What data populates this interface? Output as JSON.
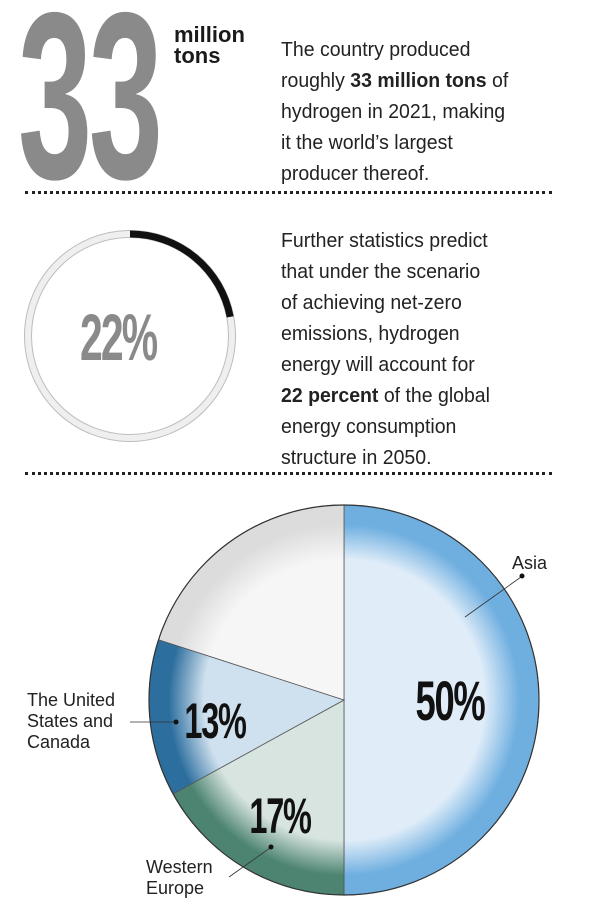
{
  "stat1": {
    "big_number": "33",
    "unit_line1": "million",
    "unit_line2": "tons",
    "lines": [
      [
        {
          "t": "The country produced"
        }
      ],
      [
        {
          "t": "roughly "
        },
        {
          "t": "33 million tons",
          "b": true
        },
        {
          "t": " of"
        }
      ],
      [
        {
          "t": "hydrogen in 2021, making"
        }
      ],
      [
        {
          "t": "it the world’s largest"
        }
      ],
      [
        {
          "t": "producer thereof."
        }
      ]
    ]
  },
  "stat2": {
    "value_label": "22%",
    "fraction": 0.22,
    "lines": [
      [
        {
          "t": "Further statistics predict"
        }
      ],
      [
        {
          "t": "that under the scenario"
        }
      ],
      [
        {
          "t": "of achieving net-zero"
        }
      ],
      [
        {
          "t": "emissions, hydrogen"
        }
      ],
      [
        {
          "t": "energy will account for"
        }
      ],
      [
        {
          "t": "22 percent",
          "b": true
        },
        {
          "t": " of the global"
        }
      ],
      [
        {
          "t": "energy consumption"
        }
      ],
      [
        {
          "t": "structure in 2050."
        }
      ]
    ]
  },
  "chart_data": {
    "type": "pie",
    "title": "",
    "slices": [
      {
        "name": "Asia",
        "value": 50,
        "label": "50%",
        "edge": "#6fafe0",
        "center": "#e0edf9"
      },
      {
        "name": "Western Europe",
        "value": 17,
        "label": "17%",
        "edge": "#4d8471",
        "center": "#d7e4df"
      },
      {
        "name": "The United States and Canada",
        "value": 13,
        "label": "13%",
        "edge": "#2c6e9e",
        "center": "#cfe0ee"
      },
      {
        "name": "",
        "value": 20,
        "label": "",
        "edge": "#dcdcdc",
        "center": "#f6f6f6"
      }
    ],
    "callouts": {
      "asia": [
        "Asia"
      ],
      "us": [
        "The United",
        "States and",
        "Canada"
      ],
      "we": [
        "Western",
        "Europe"
      ]
    }
  }
}
